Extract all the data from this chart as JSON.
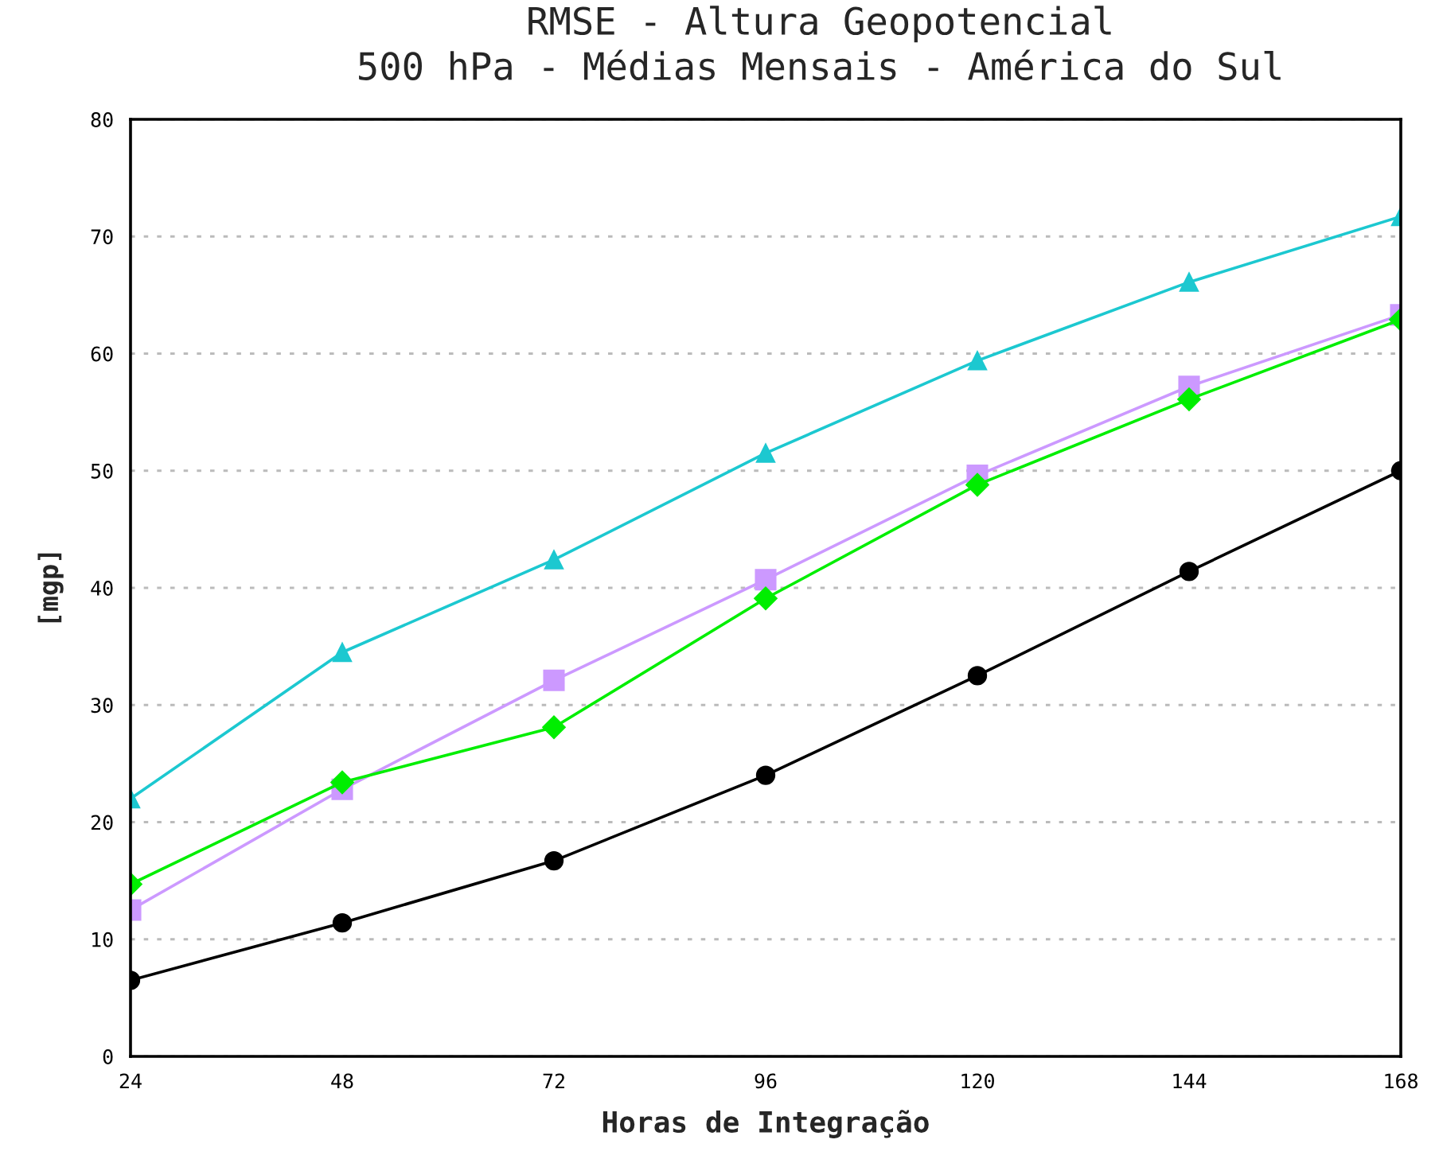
{
  "chart_data": {
    "type": "line",
    "title": "RMSE - Altura Geopotencial\n500 hPa - Médias Mensais - América do Sul",
    "xlabel": "Horas de Integração",
    "ylabel": "[mgp]",
    "x": [
      24,
      48,
      72,
      96,
      120,
      144,
      168
    ],
    "series": [
      {
        "color": "#1cc8d0",
        "marker": "triangle",
        "values": [
          22.0,
          34.5,
          42.4,
          51.5,
          59.4,
          66.1,
          71.7
        ]
      },
      {
        "color": "#cc99ff",
        "marker": "square",
        "values": [
          12.5,
          22.8,
          32.1,
          40.7,
          49.6,
          57.2,
          63.3
        ]
      },
      {
        "color": "#00ee00",
        "marker": "diamond",
        "values": [
          14.7,
          23.4,
          28.1,
          39.1,
          48.8,
          56.1,
          62.9
        ]
      },
      {
        "color": "#000000",
        "marker": "circle",
        "values": [
          6.5,
          11.4,
          16.7,
          24.0,
          32.5,
          41.4,
          50.0
        ]
      }
    ],
    "xlim": [
      24,
      168
    ],
    "xticks": [
      24,
      48,
      72,
      96,
      120,
      144,
      168
    ],
    "ylim": [
      0,
      80
    ],
    "yticks": [
      0,
      10,
      20,
      30,
      40,
      50,
      60,
      70,
      80
    ],
    "grid": "y",
    "legend": false,
    "line_style": "solid"
  }
}
